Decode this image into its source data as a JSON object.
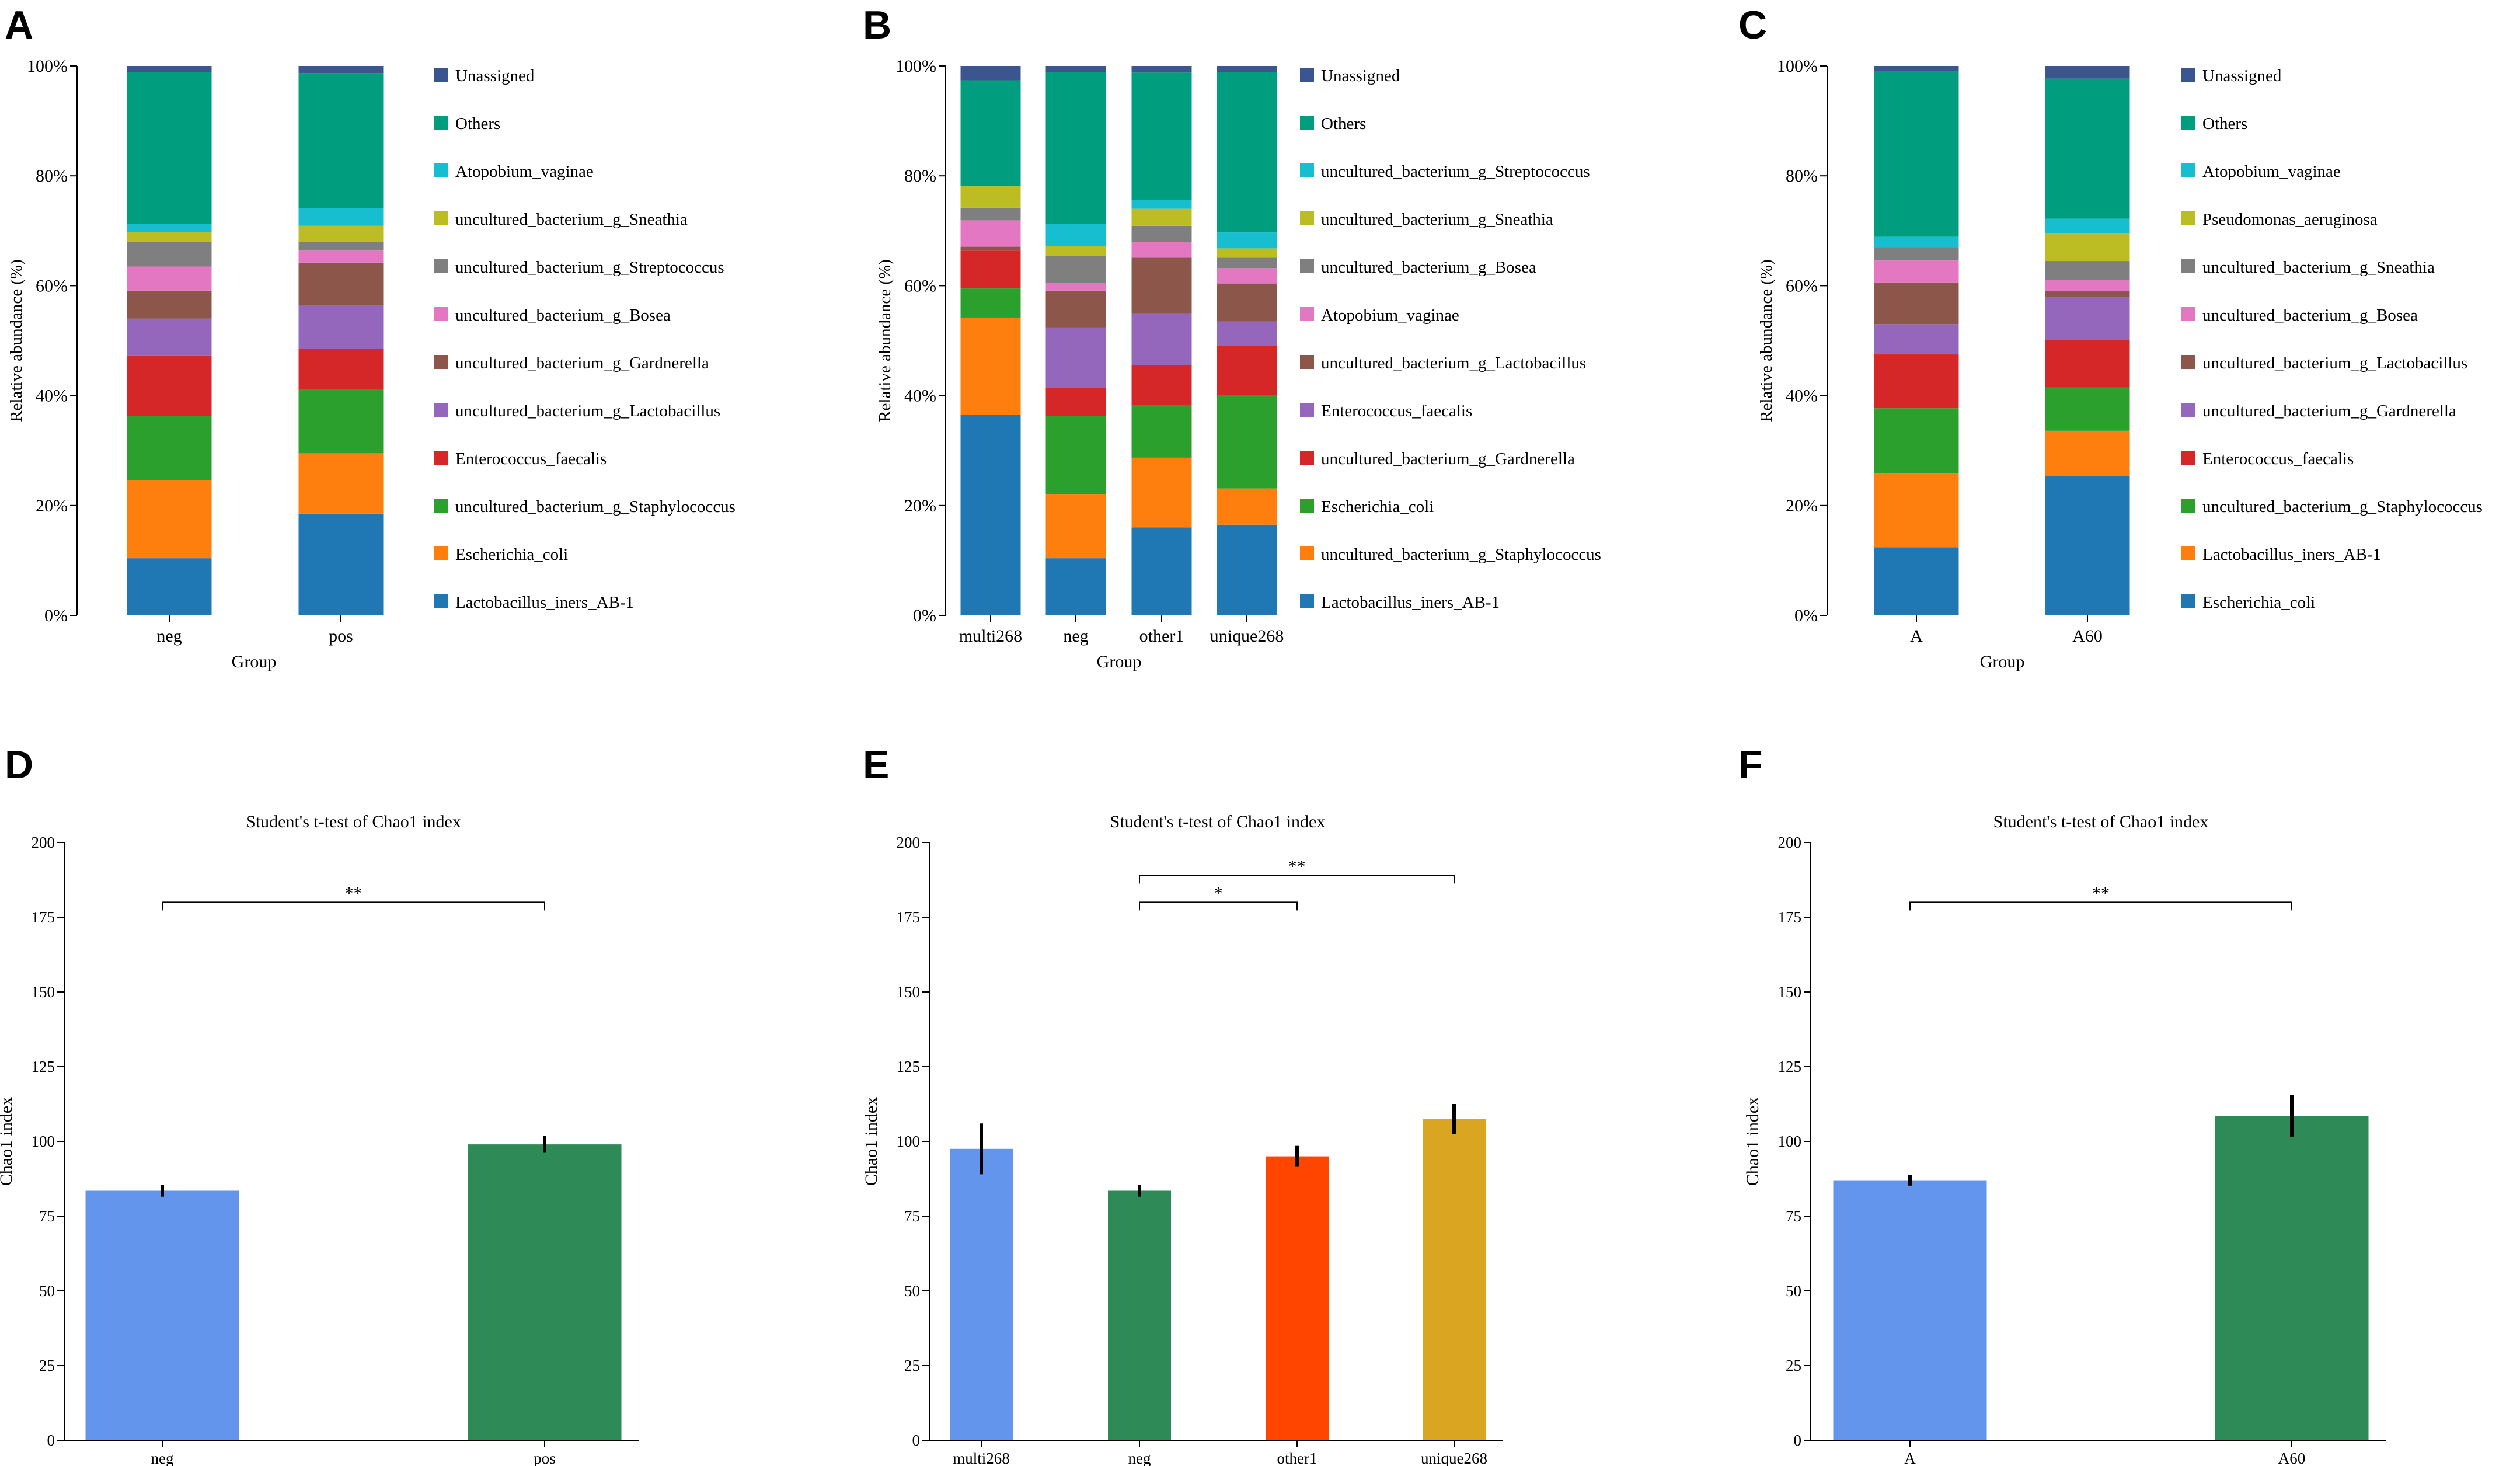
{
  "chart_data": [
    {
      "panel": "A",
      "type": "bar",
      "stacked": true,
      "ylabel": "Relative abundance (%)",
      "xlabel": "Group",
      "yticks": [
        "0%",
        "20%",
        "40%",
        "60%",
        "80%",
        "100%"
      ],
      "ylim": [
        0,
        100
      ],
      "categories": [
        "neg",
        "pos"
      ],
      "series": [
        {
          "name": "Lactobacillus_iners_AB-1",
          "color": "#1f77b4",
          "values": [
            10.4,
            18.5
          ]
        },
        {
          "name": "Escherichia_coli",
          "color": "#ff7f0e",
          "values": [
            14.2,
            11.0
          ]
        },
        {
          "name": "uncultured_bacterium_g_Staphylococcus",
          "color": "#2ca02c",
          "values": [
            11.7,
            11.7
          ]
        },
        {
          "name": "Enterococcus_faecalis",
          "color": "#d62728",
          "values": [
            11.0,
            7.3
          ]
        },
        {
          "name": "uncultured_bacterium_g_Lactobacillus",
          "color": "#9467bd",
          "values": [
            6.7,
            8.0
          ]
        },
        {
          "name": "uncultured_bacterium_g_Gardnerella",
          "color": "#8c564b",
          "values": [
            5.1,
            7.7
          ]
        },
        {
          "name": "uncultured_bacterium_g_Bosea",
          "color": "#e377c2",
          "values": [
            4.4,
            2.2
          ]
        },
        {
          "name": "uncultured_bacterium_g_Streptococcus",
          "color": "#7f7f7f",
          "values": [
            4.5,
            1.6
          ]
        },
        {
          "name": "uncultured_bacterium_g_Sneathia",
          "color": "#bcbd22",
          "values": [
            1.8,
            2.9
          ]
        },
        {
          "name": "Atopobium_vaginae",
          "color": "#17becf",
          "values": [
            1.5,
            3.2
          ]
        },
        {
          "name": "Others",
          "color": "#009e7f",
          "values": [
            27.6,
            24.6
          ]
        },
        {
          "name": "Unassigned",
          "color": "#3b5590",
          "values": [
            1.1,
            1.3
          ]
        }
      ]
    },
    {
      "panel": "B",
      "type": "bar",
      "stacked": true,
      "ylabel": "Relative abundance (%)",
      "xlabel": "Group",
      "yticks": [
        "0%",
        "20%",
        "40%",
        "60%",
        "80%",
        "100%"
      ],
      "ylim": [
        0,
        100
      ],
      "categories": [
        "multi268",
        "neg",
        "other1",
        "unique268"
      ],
      "series": [
        {
          "name": "Lactobacillus_iners_AB-1",
          "color": "#1f77b4",
          "values": [
            36.5,
            10.4,
            16.0,
            16.5
          ]
        },
        {
          "name": "uncultured_bacterium_g_Staphylococcus",
          "color": "#ff7f0e",
          "values": [
            17.7,
            11.7,
            12.7,
            6.6
          ]
        },
        {
          "name": "Escherichia_coli",
          "color": "#2ca02c",
          "values": [
            5.3,
            14.2,
            9.6,
            17.0
          ]
        },
        {
          "name": "uncultured_bacterium_g_Gardnerella",
          "color": "#d62728",
          "values": [
            6.9,
            5.1,
            7.2,
            8.9
          ]
        },
        {
          "name": "Enterococcus_faecalis",
          "color": "#9467bd",
          "values": [
            0.0,
            11.0,
            9.5,
            4.5
          ]
        },
        {
          "name": "uncultured_bacterium_g_Lactobacillus",
          "color": "#8c564b",
          "values": [
            0.7,
            6.7,
            10.1,
            6.9
          ]
        },
        {
          "name": "Atopobium_vaginae",
          "color": "#e377c2",
          "values": [
            4.8,
            1.4,
            2.9,
            2.8
          ]
        },
        {
          "name": "uncultured_bacterium_g_Bosea",
          "color": "#7f7f7f",
          "values": [
            2.3,
            4.9,
            2.9,
            1.9
          ]
        },
        {
          "name": "uncultured_bacterium_g_Sneathia",
          "color": "#bcbd22",
          "values": [
            3.9,
            1.8,
            3.1,
            1.7
          ]
        },
        {
          "name": "uncultured_bacterium_g_Streptococcus",
          "color": "#17becf",
          "values": [
            0.0,
            4.0,
            1.6,
            2.9
          ]
        },
        {
          "name": "Others",
          "color": "#009e7f",
          "values": [
            19.3,
            27.7,
            23.2,
            29.2
          ]
        },
        {
          "name": "Unassigned",
          "color": "#3b5590",
          "values": [
            2.6,
            1.1,
            1.2,
            1.1
          ]
        }
      ]
    },
    {
      "panel": "C",
      "type": "bar",
      "stacked": true,
      "ylabel": "Relative abundance (%)",
      "xlabel": "Group",
      "yticks": [
        "0%",
        "20%",
        "40%",
        "60%",
        "80%",
        "100%"
      ],
      "ylim": [
        0,
        100
      ],
      "categories": [
        "A",
        "A60"
      ],
      "series": [
        {
          "name": "Escherichia_coli",
          "color": "#1f77b4",
          "values": [
            12.4,
            25.4
          ]
        },
        {
          "name": "Lactobacillus_iners_AB-1",
          "color": "#ff7f0e",
          "values": [
            13.4,
            8.2
          ]
        },
        {
          "name": "uncultured_bacterium_g_Staphylococcus",
          "color": "#2ca02c",
          "values": [
            11.9,
            7.9
          ]
        },
        {
          "name": "Enterococcus_faecalis",
          "color": "#d62728",
          "values": [
            9.8,
            8.6
          ]
        },
        {
          "name": "uncultured_bacterium_g_Gardnerella",
          "color": "#9467bd",
          "values": [
            5.5,
            7.9
          ]
        },
        {
          "name": "uncultured_bacterium_g_Lactobacillus",
          "color": "#8c564b",
          "values": [
            7.6,
            1.0
          ]
        },
        {
          "name": "uncultured_bacterium_g_Bosea",
          "color": "#e377c2",
          "values": [
            4.0,
            2.0
          ]
        },
        {
          "name": "uncultured_bacterium_g_Sneathia",
          "color": "#7f7f7f",
          "values": [
            2.4,
            3.5
          ]
        },
        {
          "name": "Pseudomonas_aeruginosa",
          "color": "#bcbd22",
          "values": [
            0.0,
            5.1
          ]
        },
        {
          "name": "Atopobium_vaginae",
          "color": "#17becf",
          "values": [
            1.9,
            2.6
          ]
        },
        {
          "name": "Others",
          "color": "#009e7f",
          "values": [
            30.1,
            25.5
          ]
        },
        {
          "name": "Unassigned",
          "color": "#3b5590",
          "values": [
            1.0,
            2.3
          ]
        }
      ]
    },
    {
      "panel": "D",
      "type": "bar",
      "title": "Student's t-test of Chao1 index",
      "ylabel": "Chao1 index",
      "yticks": [
        0,
        25,
        50,
        75,
        100,
        125,
        150,
        175,
        200
      ],
      "ylim": [
        0,
        200
      ],
      "categories": [
        "neg",
        "pos"
      ],
      "values": [
        83.5,
        99.0
      ],
      "errors": [
        2.0,
        2.8
      ],
      "colors": [
        "#6495ed",
        "#2e8b57"
      ],
      "significance": [
        {
          "from": 0,
          "to": 1,
          "label": "**",
          "level": 180
        }
      ]
    },
    {
      "panel": "E",
      "type": "bar",
      "title": "Student's t-test of Chao1 index",
      "ylabel": "Chao1 index",
      "yticks": [
        0,
        25,
        50,
        75,
        100,
        125,
        150,
        175,
        200
      ],
      "ylim": [
        0,
        200
      ],
      "categories": [
        "multi268",
        "neg",
        "other1",
        "unique268"
      ],
      "values": [
        97.5,
        83.5,
        95.0,
        107.5
      ],
      "errors": [
        8.5,
        2.0,
        3.5,
        5.0
      ],
      "colors": [
        "#6495ed",
        "#2e8b57",
        "#ff4500",
        "#daa520"
      ],
      "significance": [
        {
          "from": 1,
          "to": 2,
          "label": "*",
          "level": 180
        },
        {
          "from": 1,
          "to": 3,
          "label": "**",
          "level": 189
        }
      ]
    },
    {
      "panel": "F",
      "type": "bar",
      "title": "Student's t-test of Chao1 index",
      "ylabel": "Chao1 index",
      "yticks": [
        0,
        25,
        50,
        75,
        100,
        125,
        150,
        175,
        200
      ],
      "ylim": [
        0,
        200
      ],
      "categories": [
        "A",
        "A60"
      ],
      "values": [
        87.0,
        108.5
      ],
      "errors": [
        1.8,
        7.0
      ],
      "colors": [
        "#6495ed",
        "#2e8b57"
      ],
      "significance": [
        {
          "from": 0,
          "to": 1,
          "label": "**",
          "level": 180
        }
      ]
    }
  ]
}
